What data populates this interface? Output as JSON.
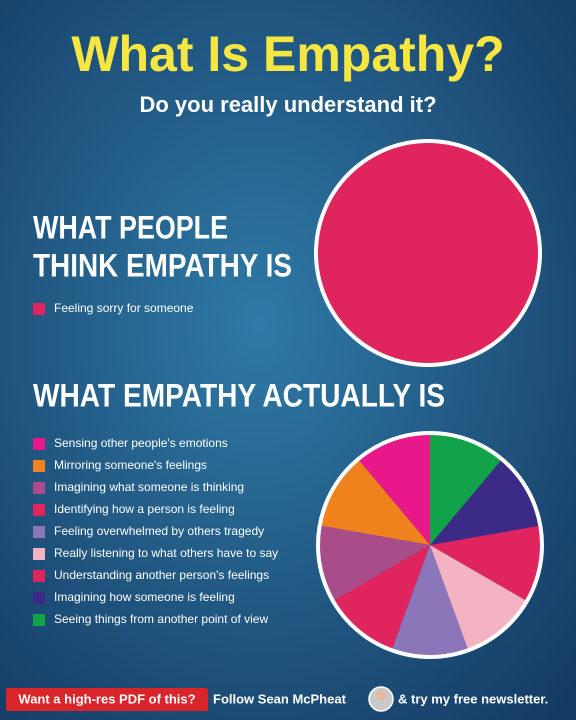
{
  "title": "What Is Empathy?",
  "subtitle": "Do you really understand it?",
  "chart_data": [
    {
      "type": "pie",
      "title_lines": [
        "WHAT PEOPLE",
        "THINK EMPATHY IS"
      ],
      "categories": [
        "Feeling sorry for someone"
      ],
      "values": [
        100
      ],
      "colors": [
        "#e0245e"
      ]
    },
    {
      "type": "pie",
      "title_lines": [
        "WHAT EMPATHY ACTUALLY IS"
      ],
      "categories": [
        "Sensing other people's emotions",
        "Mirroring someone's feelings",
        "Imagining what someone is thinking",
        "Identifying how a person is feeling",
        "Feeling overwhelmed by others tragedy",
        "Really listening to what others have to say",
        "Understanding another person's feelings",
        "Imagining how someone is feeling",
        "Seeing things from another point of view"
      ],
      "values": [
        11.1,
        11.1,
        11.1,
        11.1,
        11.1,
        11.1,
        11.1,
        11.1,
        11.1
      ],
      "colors": [
        "#e8178a",
        "#f0821e",
        "#a84d8a",
        "#e0245e",
        "#8a76b8",
        "#f4b3c2",
        "#e0245e",
        "#3b2a86",
        "#12a24a"
      ]
    }
  ],
  "footer": {
    "cta": "Want a high-res PDF of this?",
    "follow": "Follow Sean McPheat",
    "newsletter": "& try my free newsletter."
  }
}
